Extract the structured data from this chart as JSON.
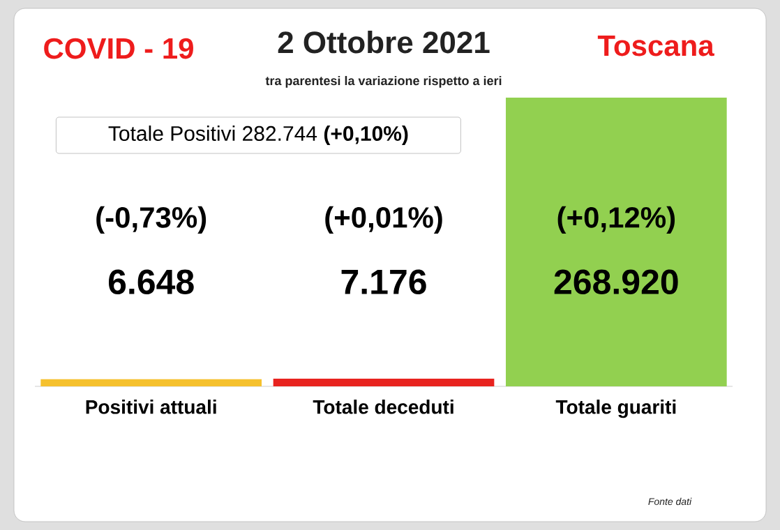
{
  "chart_data": {
    "type": "bar",
    "title": "2 Ottobre 2021",
    "subtitle": "tra parentesi la variazione rispetto a ieri",
    "categories": [
      "Positivi attuali",
      "Totale deceduti",
      "Totale guariti"
    ],
    "values": [
      6648,
      7176,
      268920
    ],
    "value_labels": [
      "6.648",
      "7.176",
      "268.920"
    ],
    "colors": [
      "#f5c12e",
      "#e8231f",
      "#92d050"
    ],
    "annotations": [
      "COVID - 19",
      "Toscana",
      "Totale Positivi   282.744 **(+0,10%)**",
      "(-0,73%)",
      "(+0,01%)",
      "(+0,12%)",
      "Fonte dati"
    ]
  }
}
